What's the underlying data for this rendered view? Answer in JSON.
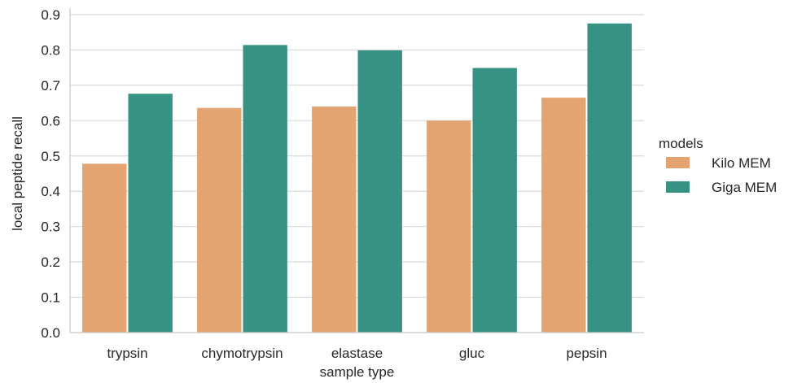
{
  "chart_data": {
    "type": "bar",
    "title": "",
    "xlabel": "sample type",
    "ylabel": "local peptide recall",
    "categories": [
      "trypsin",
      "chymotrypsin",
      "elastase",
      "gluc",
      "pepsin"
    ],
    "series": [
      {
        "name": "Kilo MEM",
        "color": "#e3a472",
        "values": [
          0.478,
          0.636,
          0.64,
          0.6,
          0.665
        ]
      },
      {
        "name": "Giga MEM",
        "color": "#379284",
        "values": [
          0.676,
          0.814,
          0.799,
          0.749,
          0.875
        ]
      }
    ],
    "ylim": [
      0,
      0.9
    ],
    "yticks": [
      0.0,
      0.1,
      0.2,
      0.3,
      0.4,
      0.5,
      0.6,
      0.7,
      0.8,
      0.9
    ],
    "ytick_labels": [
      "0.0",
      "0.1",
      "0.2",
      "0.3",
      "0.4",
      "0.5",
      "0.6",
      "0.7",
      "0.8",
      "0.9"
    ],
    "grid": true,
    "legend": {
      "title": "models",
      "position": "right"
    }
  }
}
